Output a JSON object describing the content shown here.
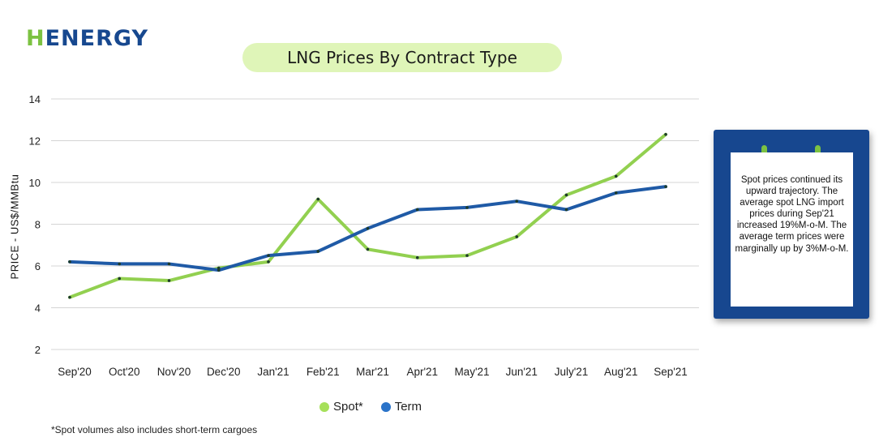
{
  "brand": {
    "logo_text": "ENERGY",
    "logo_initial": "H",
    "colors": {
      "brand_blue": "#17488f",
      "brand_green": "#7cc242",
      "title_bg": "#dff5b8"
    }
  },
  "chart_data": {
    "type": "line",
    "title": "LNG Prices By Contract Type",
    "xlabel": "",
    "ylabel": "PRICE - US$/MMBtu",
    "categories": [
      "Sep'20",
      "Oct'20",
      "Nov'20",
      "Dec'20",
      "Jan'21",
      "Feb'21",
      "Mar'21",
      "Apr'21",
      "May'21",
      "Jun'21",
      "July'21",
      "Aug'21",
      "Sep'21"
    ],
    "ylim": [
      2,
      14
    ],
    "yticks": [
      2,
      4,
      6,
      8,
      10,
      12,
      14
    ],
    "grid": true,
    "legend_position": "bottom-center",
    "series": [
      {
        "name": "Spot*",
        "color": "#92d050",
        "dot_color": "#a6e05a",
        "values": [
          4.5,
          5.4,
          5.3,
          5.9,
          6.2,
          9.2,
          6.8,
          6.4,
          6.5,
          7.4,
          9.4,
          10.3,
          12.3
        ]
      },
      {
        "name": "Term",
        "color": "#1f5aa6",
        "dot_color": "#2a73c9",
        "values": [
          6.2,
          6.1,
          6.1,
          5.8,
          6.5,
          6.7,
          7.8,
          8.7,
          8.8,
          9.1,
          8.7,
          9.5,
          9.8
        ]
      }
    ]
  },
  "note": {
    "text": "Spot prices continued its upward trajectory. The average spot LNG import prices during Sep'21 increased 19%M-o-M. The average term prices were marginally up by 3%M-o-M."
  },
  "footnote": "*Spot volumes also includes short-term cargoes"
}
